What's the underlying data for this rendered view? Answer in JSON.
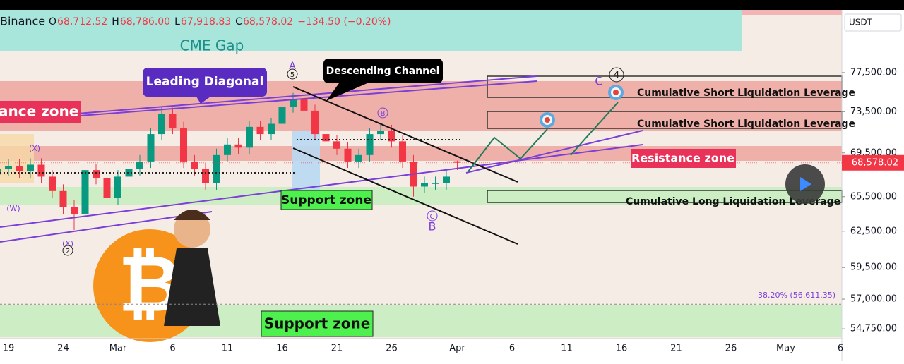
{
  "chart_data": {
    "type": "candlestick",
    "exchange": "Binance",
    "currency": "USDT",
    "legend_values": [
      {
        "key": "O",
        "value": "68,712.52"
      },
      {
        "key": "H",
        "value": "68,786.00"
      },
      {
        "key": "L",
        "value": "67,918.83"
      },
      {
        "key": "C",
        "value": "68,578.02"
      }
    ],
    "change": "−134.50 (−0.20%)",
    "price_label": "68,578.02",
    "log_scale": true,
    "up_color": "#089981",
    "down_color": "#f23645",
    "categories": [
      null,
      "19",
      null,
      null,
      null,
      null,
      "24",
      null,
      null,
      null,
      null,
      "Mar",
      null,
      null,
      null,
      null,
      "6",
      null,
      null,
      null,
      null,
      "11",
      null,
      null,
      null,
      null,
      "16",
      null,
      null,
      null,
      null,
      "21",
      null,
      null,
      null,
      null,
      "26",
      null,
      null,
      null,
      null,
      null,
      "Apr",
      null,
      null,
      null,
      null,
      "6",
      null,
      null,
      null,
      null,
      "11",
      null,
      null,
      null,
      null,
      "16",
      null,
      null,
      null,
      null,
      "21",
      null,
      null,
      null,
      null,
      "26",
      null,
      null,
      null,
      null,
      "May",
      null,
      null,
      null,
      null,
      "6"
    ],
    "open": [
      67500,
      68000,
      68300,
      67800,
      68400,
      67300,
      66000,
      64600,
      64000,
      67900,
      67200,
      65400,
      67300,
      68000,
      68700,
      71300,
      73300,
      71900,
      68700,
      68000,
      66700,
      69300,
      70300,
      70000,
      72000,
      71300,
      72300,
      74000,
      74800,
      73600,
      71300,
      70600,
      69900,
      68700,
      69300,
      71300,
      71600,
      70600,
      68700,
      66400,
      66700,
      66700,
      68712.52,
      null,
      null,
      null,
      null,
      null,
      null,
      null,
      null,
      null,
      null,
      null,
      null,
      null,
      null,
      null,
      null,
      null,
      null,
      null,
      null,
      null,
      null,
      null,
      null,
      null,
      null,
      null,
      null,
      null,
      null,
      null,
      null,
      null,
      null,
      null
    ],
    "high": [
      68600,
      68900,
      68900,
      69000,
      69000,
      67900,
      66600,
      65200,
      68500,
      68500,
      67800,
      67900,
      68600,
      69300,
      71900,
      74000,
      73900,
      72500,
      69300,
      68600,
      69900,
      70900,
      70900,
      72600,
      72600,
      72900,
      75400,
      75400,
      75400,
      74200,
      71900,
      71200,
      70500,
      69900,
      71900,
      72200,
      72200,
      71200,
      69300,
      67300,
      67300,
      67900,
      68786,
      null,
      null,
      null,
      null,
      null,
      null,
      null,
      null,
      null,
      null,
      null,
      null,
      null,
      null,
      null,
      null,
      null,
      null,
      null,
      null,
      null,
      null,
      null,
      null,
      null,
      null,
      null,
      null,
      null,
      null,
      null,
      null,
      null,
      null,
      null
    ],
    "low": [
      66900,
      67400,
      67200,
      67200,
      66700,
      65400,
      64000,
      62600,
      63400,
      66600,
      64800,
      64800,
      66700,
      67400,
      68100,
      70700,
      71300,
      68100,
      67400,
      66100,
      66100,
      68700,
      69400,
      69400,
      70700,
      70700,
      71700,
      73400,
      73000,
      70700,
      70000,
      69300,
      68100,
      68100,
      68700,
      70700,
      70000,
      68100,
      65500,
      65800,
      66100,
      66100,
      67918.83,
      null,
      null,
      null,
      null,
      null,
      null,
      null,
      null,
      null,
      null,
      null,
      null,
      null,
      null,
      null,
      null,
      null,
      null,
      null,
      null,
      null,
      null,
      null,
      null,
      null,
      null,
      null,
      null,
      null,
      null,
      null,
      null,
      null,
      null,
      null
    ],
    "close": [
      68000,
      68300,
      67800,
      68400,
      67300,
      66000,
      64600,
      64000,
      67900,
      67200,
      65400,
      67300,
      68000,
      68700,
      71300,
      73300,
      71900,
      68700,
      68000,
      66700,
      69300,
      70300,
      70000,
      72000,
      71300,
      72300,
      74000,
      74800,
      73600,
      71300,
      70600,
      69900,
      68700,
      69300,
      71300,
      71600,
      70600,
      68700,
      66400,
      66700,
      66700,
      67300,
      68578.02,
      null,
      null,
      null,
      null,
      null,
      null,
      null,
      null,
      null,
      null,
      null,
      null,
      null,
      null,
      null,
      null,
      null,
      null,
      null,
      null,
      null,
      null,
      null,
      null,
      null,
      null,
      null,
      null,
      null,
      null,
      null,
      null,
      null,
      null,
      null
    ],
    "ylim": [
      54030,
      84380
    ],
    "yticks": [
      {
        "value": 77500,
        "label": "77,500.00"
      },
      {
        "value": 73500,
        "label": "73,500.00"
      },
      {
        "value": 69500,
        "label": "69,500.00"
      },
      {
        "value": 65500,
        "label": "65,500.00"
      },
      {
        "value": 62500,
        "label": "62,500.00"
      },
      {
        "value": 59500,
        "label": "59,500.00"
      },
      {
        "value": 57000,
        "label": "57,000.00"
      },
      {
        "value": 54750,
        "label": "54,750.00"
      }
    ],
    "fib_level": {
      "value": 56611.35,
      "label": "38.20% (56,611.35)"
    },
    "annotations": {
      "cme_gap": "CME Gap",
      "leading_diagonal": "Leading Diagonal",
      "descending_channel": "Descending Channel",
      "resistance_left": "ance zone",
      "resistance_right": "Resistance zone",
      "support_mid": "Support zone",
      "support_bottom": "Support zone",
      "short_liq_1": "Cumulative Short Liquidation Leverage",
      "short_liq_2": "Cumulative Short Liquidation Leverage",
      "long_liq": "Cumulative Long Liquidation Leverage",
      "waves": [
        "(X)",
        "(W)",
        "(X)",
        "2",
        "A",
        "5",
        "B",
        "C",
        "B",
        "C",
        "4"
      ]
    }
  }
}
